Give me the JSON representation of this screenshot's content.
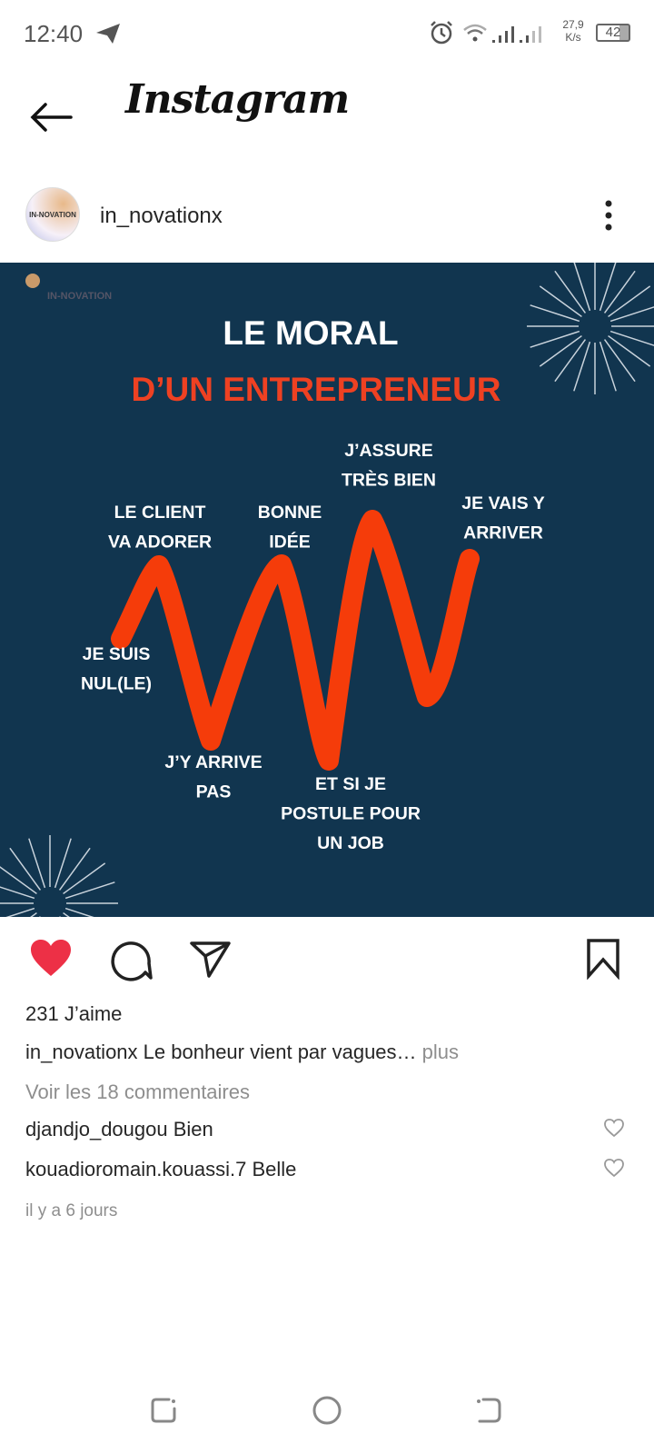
{
  "status_bar": {
    "time": "12:40",
    "net_speed_value": "27,9",
    "net_speed_unit": "K/s",
    "battery": "42",
    "icons": [
      "telegram-icon",
      "alarm-icon",
      "wifi-icon",
      "signal-icon",
      "signal-icon"
    ]
  },
  "header": {
    "back_icon": "arrow-left-icon",
    "app_name": "Instagram"
  },
  "post_header": {
    "username": "in_novationx",
    "avatar_text": "IN-NOVATION",
    "more_icon": "more-vertical-icon"
  },
  "post_image": {
    "watermark": "IN-NOVATION",
    "title_line1": "LE MORAL",
    "title_line2": "D’UN ENTREPRENEUR",
    "labels": {
      "je_suis": [
        "JE SUIS",
        "NUL(LE)"
      ],
      "le_client": [
        "LE CLIENT",
        "VA ADORER"
      ],
      "jy_arrive": [
        "J’Y ARRIVE",
        "PAS"
      ],
      "bonne": [
        "BONNE",
        "IDÉE"
      ],
      "et_si": [
        "ET SI JE",
        "POSTULE POUR",
        "UN JOB"
      ],
      "jassure": [
        "J’ASSURE",
        "TRÈS BIEN"
      ],
      "je_vais": [
        "JE VAIS Y",
        "ARRIVER"
      ]
    },
    "colors": {
      "background": "#11354f",
      "accent": "#f53c0a",
      "title_red": "#ee4122"
    }
  },
  "actions": {
    "like_icon": "heart-filled-icon",
    "comment_icon": "comment-icon",
    "share_icon": "send-icon",
    "save_icon": "bookmark-icon",
    "like_color": "#ed3046"
  },
  "likes": "231 J’aime",
  "caption": {
    "username": "in_novationx",
    "text": "Le bonheur vient par vagues…",
    "more": "plus"
  },
  "view_comments": "Voir les 18 commentaires",
  "comments": [
    {
      "username": "djandjo_dougou",
      "text": "Bien"
    },
    {
      "username": "kouadioromain.kouassi.7",
      "text": "Belle"
    }
  ],
  "timestamp": "il y a 6 jours",
  "nav": {
    "icons": [
      "recent-apps-icon",
      "home-icon",
      "back-icon"
    ]
  }
}
